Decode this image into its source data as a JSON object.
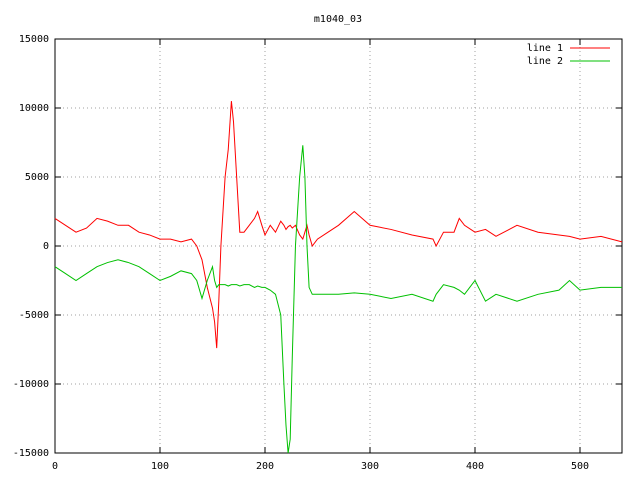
{
  "chart_data": {
    "type": "line",
    "title": "m1040_03",
    "x": [
      0,
      10,
      20,
      30,
      40,
      50,
      60,
      70,
      80,
      90,
      100,
      110,
      120,
      130,
      135,
      140,
      145,
      150,
      152,
      154,
      156,
      158,
      162,
      165,
      168,
      170,
      173,
      176,
      180,
      185,
      190,
      193,
      197,
      200,
      205,
      210,
      215,
      218,
      220,
      222,
      224,
      226,
      229,
      233,
      236,
      238,
      240,
      242,
      245,
      250,
      260,
      270,
      285,
      300,
      320,
      340,
      360,
      363,
      370,
      380,
      385,
      390,
      400,
      410,
      420,
      440,
      460,
      480,
      490,
      500,
      520,
      540
    ],
    "series": [
      {
        "name": "line 1",
        "color": "#ff0000",
        "values": [
          2000,
          1500,
          1000,
          1300,
          2000,
          1800,
          1500,
          1500,
          1000,
          800,
          500,
          500,
          300,
          500,
          0,
          -1000,
          -3000,
          -4500,
          -5500,
          -7400,
          -4000,
          0,
          5000,
          7000,
          10500,
          9000,
          5000,
          1000,
          1000,
          1500,
          2000,
          2500,
          1500,
          800,
          1500,
          1000,
          1800,
          1500,
          1200,
          1400,
          1500,
          1300,
          1500,
          800,
          500,
          1000,
          1500,
          800,
          0,
          500,
          1000,
          1500,
          2500,
          1500,
          1200,
          800,
          500,
          0,
          1000,
          1000,
          2000,
          1500,
          1000,
          1200,
          700,
          1500,
          1000,
          800,
          700,
          500,
          700,
          300
        ]
      },
      {
        "name": "line 2",
        "color": "#00c000",
        "values": [
          -1500,
          -2000,
          -2500,
          -2000,
          -1500,
          -1200,
          -1000,
          -1200,
          -1500,
          -2000,
          -2500,
          -2200,
          -1800,
          -2000,
          -2500,
          -3800,
          -2500,
          -1500,
          -2500,
          -3000,
          -2800,
          -2800,
          -2800,
          -2900,
          -2800,
          -2800,
          -2800,
          -2900,
          -2800,
          -2800,
          -3000,
          -2900,
          -3000,
          -3000,
          -3200,
          -3500,
          -5000,
          -10000,
          -13000,
          -15000,
          -14000,
          -8000,
          0,
          5000,
          7300,
          5000,
          0,
          -3000,
          -3500,
          -3500,
          -3500,
          -3500,
          -3400,
          -3500,
          -3800,
          -3500,
          -4000,
          -3500,
          -2800,
          -3000,
          -3200,
          -3500,
          -2500,
          -4000,
          -3500,
          -4000,
          -3500,
          -3200,
          -2500,
          -3200,
          -3000,
          -3000
        ]
      }
    ],
    "xlim": [
      0,
      540
    ],
    "xticks": [
      0,
      100,
      200,
      300,
      400,
      500
    ],
    "ylim": [
      -15000,
      15000
    ],
    "yticks": [
      -15000,
      -10000,
      -5000,
      0,
      5000,
      10000,
      15000
    ],
    "grid": true,
    "legend": "top-right"
  }
}
